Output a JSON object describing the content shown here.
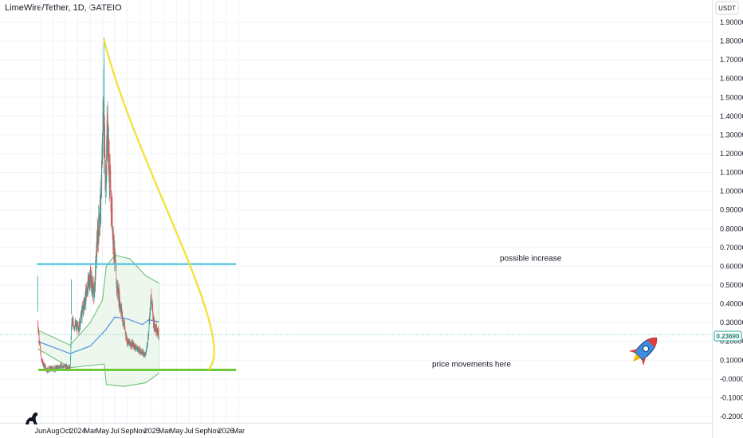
{
  "header": {
    "symbol_title": "LimeWire/Tether, 1D, GATEIO"
  },
  "axis": {
    "currency": "USDT",
    "last_price": "0.23690"
  },
  "chart_data": {
    "type": "candlestick",
    "title": "LimeWire/Tether, 1D, GATEIO",
    "ylim": [
      -0.2,
      1.9
    ],
    "y_ticks": [
      {
        "value": 1.9,
        "label": "1.90000"
      },
      {
        "value": 1.8,
        "label": "1.80000"
      },
      {
        "value": 1.7,
        "label": "1.70000"
      },
      {
        "value": 1.6,
        "label": "1.60000"
      },
      {
        "value": 1.5,
        "label": "1.50000"
      },
      {
        "value": 1.4,
        "label": "1.40000"
      },
      {
        "value": 1.3,
        "label": "1.30000"
      },
      {
        "value": 1.2,
        "label": "1.20000"
      },
      {
        "value": 1.1,
        "label": "1.10000"
      },
      {
        "value": 1.0,
        "label": "1.00000"
      },
      {
        "value": 0.9,
        "label": "0.90000"
      },
      {
        "value": 0.8,
        "label": "0.80000"
      },
      {
        "value": 0.7,
        "label": "0.70000"
      },
      {
        "value": 0.6,
        "label": "0.60000"
      },
      {
        "value": 0.5,
        "label": "0.50000"
      },
      {
        "value": 0.4,
        "label": "0.40000"
      },
      {
        "value": 0.3,
        "label": "0.30000"
      },
      {
        "value": 0.2,
        "label": "0.20000"
      },
      {
        "value": 0.1,
        "label": "0.10000"
      },
      {
        "value": 0.0,
        "label": "-0.00000"
      },
      {
        "value": -0.1,
        "label": "-0.10000"
      },
      {
        "value": -0.2,
        "label": "-0.20000"
      }
    ],
    "x_ticks": [
      "Jun",
      "Aug",
      "Oct",
      "2024",
      "Mar",
      "May",
      "Jul",
      "Sep",
      "Nov",
      "2025",
      "Mar",
      "May",
      "Jul",
      "Sep",
      "Nov",
      "2026",
      "Mar"
    ],
    "price_path": [
      {
        "date": "2023-05-18",
        "price": 0.3
      },
      {
        "date": "2023-06-05",
        "price": 0.1
      },
      {
        "date": "2023-07-01",
        "price": 0.05
      },
      {
        "date": "2023-08-10",
        "price": 0.055
      },
      {
        "date": "2023-09-15",
        "price": 0.07
      },
      {
        "date": "2023-10-25",
        "price": 0.06
      },
      {
        "date": "2023-11-01",
        "price": 0.3
      },
      {
        "date": "2023-12-05",
        "price": 0.27
      },
      {
        "date": "2024-01-05",
        "price": 0.42
      },
      {
        "date": "2024-02-01",
        "price": 0.55
      },
      {
        "date": "2024-02-20",
        "price": 0.45
      },
      {
        "date": "2024-03-05",
        "price": 0.72
      },
      {
        "date": "2024-03-25",
        "price": 0.95
      },
      {
        "date": "2024-04-08",
        "price": 1.55
      },
      {
        "date": "2024-04-15",
        "price": 1.0
      },
      {
        "date": "2024-04-25",
        "price": 1.35
      },
      {
        "date": "2024-05-10",
        "price": 1.0
      },
      {
        "date": "2024-05-25",
        "price": 0.75
      },
      {
        "date": "2024-06-10",
        "price": 0.5
      },
      {
        "date": "2024-06-25",
        "price": 0.42
      },
      {
        "date": "2024-07-10",
        "price": 0.32
      },
      {
        "date": "2024-08-01",
        "price": 0.2
      },
      {
        "date": "2024-09-01",
        "price": 0.18
      },
      {
        "date": "2024-10-01",
        "price": 0.15
      },
      {
        "date": "2024-10-31",
        "price": 0.13
      },
      {
        "date": "2024-11-15",
        "price": 0.25
      },
      {
        "date": "2024-11-25",
        "price": 0.45
      },
      {
        "date": "2024-12-10",
        "price": 0.3
      },
      {
        "date": "2025-01-05",
        "price": 0.2369
      }
    ],
    "volume_profile": {
      "start": "2023-05-18",
      "end": "2025-01-05",
      "mid": [
        {
          "date": "2023-05-18",
          "price": 0.2
        },
        {
          "date": "2023-10-25",
          "price": 0.135
        },
        {
          "date": "2024-02-01",
          "price": 0.175
        },
        {
          "date": "2024-04-15",
          "price": 0.26
        },
        {
          "date": "2024-06-01",
          "price": 0.33
        },
        {
          "date": "2024-08-01",
          "price": 0.32
        },
        {
          "date": "2024-10-15",
          "price": 0.29
        },
        {
          "date": "2024-11-15",
          "price": 0.315
        },
        {
          "date": "2025-01-05",
          "price": 0.305
        }
      ],
      "upper": [
        {
          "date": "2023-05-18",
          "price": 0.26
        },
        {
          "date": "2023-10-25",
          "price": 0.18
        },
        {
          "date": "2024-02-01",
          "price": 0.3
        },
        {
          "date": "2024-04-01",
          "price": 0.42
        },
        {
          "date": "2024-04-20",
          "price": 0.6
        },
        {
          "date": "2024-06-01",
          "price": 0.66
        },
        {
          "date": "2024-08-15",
          "price": 0.64
        },
        {
          "date": "2024-10-31",
          "price": 0.55
        },
        {
          "date": "2025-01-05",
          "price": 0.51
        }
      ],
      "lower": [
        {
          "date": "2023-05-18",
          "price": 0.16
        },
        {
          "date": "2023-10-25",
          "price": 0.06
        },
        {
          "date": "2024-03-01",
          "price": 0.075
        },
        {
          "date": "2024-04-10",
          "price": 0.08
        },
        {
          "date": "2024-04-20",
          "price": -0.03
        },
        {
          "date": "2024-07-15",
          "price": -0.04
        },
        {
          "date": "2024-10-31",
          "price": -0.02
        },
        {
          "date": "2025-01-05",
          "price": 0.03
        }
      ]
    },
    "annotations": {
      "resistance": {
        "price": 0.612,
        "from": "2023-05-18",
        "to": "2026-01-20",
        "label": "possible increase",
        "color": "#4fc3df"
      },
      "support": {
        "price": 0.048,
        "from": "2023-05-21",
        "to": "2026-01-20",
        "label": "price movements here",
        "color": "#70c93b"
      },
      "curve": {
        "from_date": "2024-04-08",
        "from_price": 1.81,
        "to_date": "2025-09-05",
        "to_price": 0.05,
        "color": "#f5e23b"
      }
    },
    "grid": true,
    "legend": "none"
  },
  "colors": {
    "up_candle": "#26a69a",
    "down_candle": "#ef5350",
    "vwap_mid": "#4a90e2",
    "band": "#66bb6a",
    "band_fill": "#e8f5e9",
    "price_line": "#26a69a",
    "axis_text": "#131722"
  },
  "icons": {
    "rocket": "rocket-icon",
    "logo": "dinosaur-logo-icon"
  }
}
